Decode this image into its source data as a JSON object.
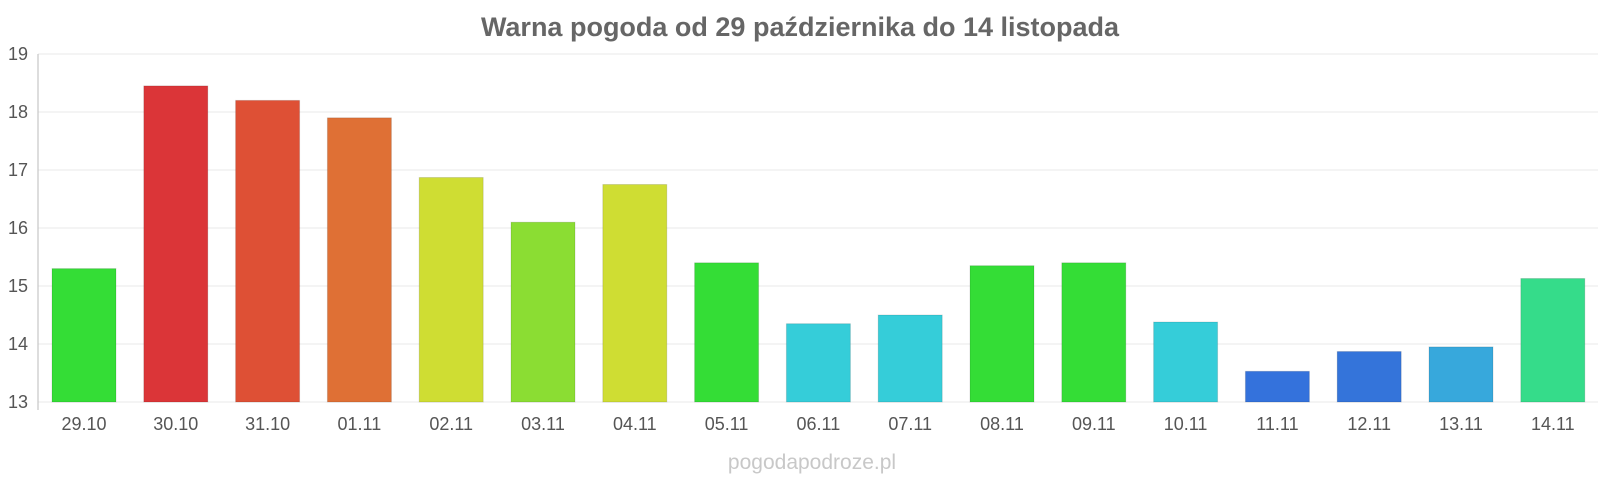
{
  "chart_data": {
    "type": "bar",
    "title": "Warna pogoda od 29 października do 14 listopada",
    "categories": [
      "29.10",
      "30.10",
      "31.10",
      "01.11",
      "02.11",
      "03.11",
      "04.11",
      "05.11",
      "06.11",
      "07.11",
      "08.11",
      "09.11",
      "10.11",
      "11.11",
      "12.11",
      "13.11",
      "14.11"
    ],
    "values": [
      15.3,
      18.45,
      18.2,
      17.9,
      16.87,
      16.1,
      16.75,
      15.4,
      14.35,
      14.5,
      15.35,
      15.4,
      14.38,
      13.53,
      13.87,
      13.95,
      15.13
    ],
    "colors": [
      "#34dd36",
      "#db3538",
      "#de5035",
      "#df7035",
      "#cfdd33",
      "#8bdd33",
      "#cfdd33",
      "#34dd36",
      "#35cdd9",
      "#35cdd9",
      "#34dd36",
      "#34dd36",
      "#35cdd9",
      "#3472dc",
      "#3474da",
      "#37a8dc",
      "#35dc8a"
    ],
    "ylim": [
      13,
      19
    ],
    "yticks": [
      "13",
      "14",
      "15",
      "16",
      "17",
      "18",
      "19"
    ],
    "grid": true,
    "legend": "none"
  },
  "watermark": "pogodapodroze.pl"
}
